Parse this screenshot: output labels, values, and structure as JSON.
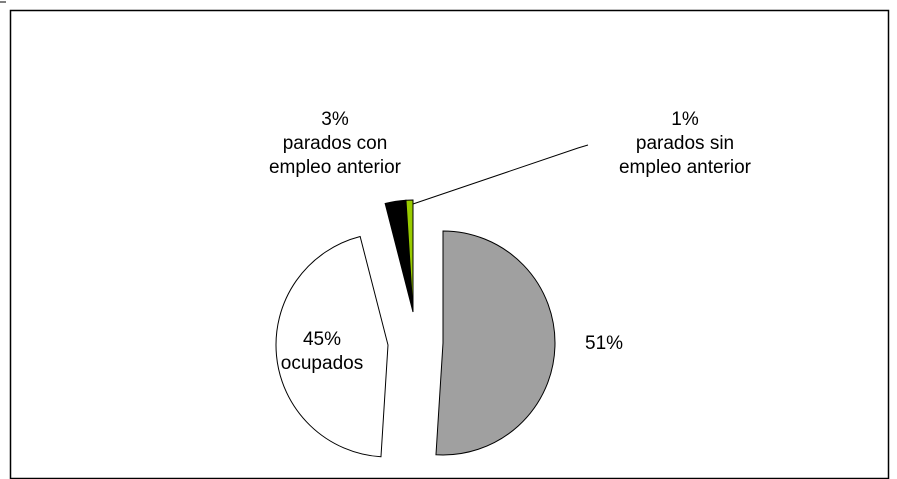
{
  "chart_data": {
    "type": "pie",
    "categories": [
      null,
      "ocupados",
      "parados con empleo anterior",
      "parados sin empleo anterior"
    ],
    "values": [
      51,
      45,
      3,
      1
    ],
    "value_labels": [
      "51%",
      "45%",
      "3%",
      "1%"
    ],
    "colors": [
      "#a0a0a0",
      "#ffffff",
      "#000000",
      "#99cc00"
    ]
  }
}
